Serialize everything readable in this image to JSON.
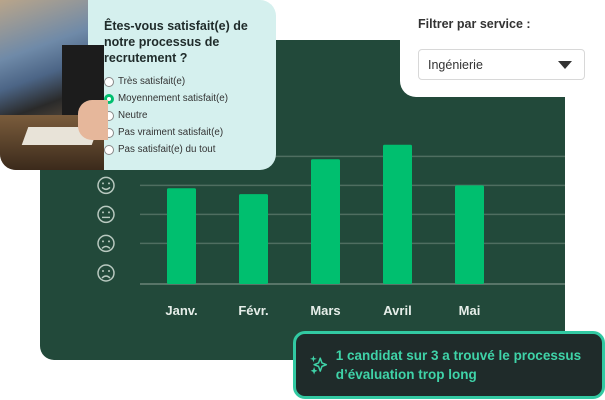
{
  "survey": {
    "question": "Êtes-vous satisfait(e) de notre processus de recrutement ?",
    "options": [
      {
        "label": "Très satisfait(e)",
        "selected": false
      },
      {
        "label": "Moyennement satisfait(e)",
        "selected": true
      },
      {
        "label": "Neutre",
        "selected": false
      },
      {
        "label": "Pas vraiment satisfait(e)",
        "selected": false
      },
      {
        "label": "Pas satisfait(e) du tout",
        "selected": false
      }
    ]
  },
  "filter": {
    "label": "Filtrer par service :",
    "selected": "Ingénierie"
  },
  "insight": {
    "icon": "sparkles-icon",
    "text": "1 candidat sur 3 a trouvé le processus d’évaluation trop long"
  },
  "colors": {
    "panel": "#22493a",
    "bar": "#00bf6f",
    "accent": "#3fd3a8"
  },
  "chart_data": {
    "type": "bar",
    "categories": [
      "Janv.",
      "Févr.",
      "Mars",
      "Avril",
      "Mai"
    ],
    "values": [
      3.9,
      3.7,
      4.9,
      5.4,
      4.0
    ],
    "y_icons": [
      {
        "level": 4,
        "icon": "happy-face-icon"
      },
      {
        "level": 3,
        "icon": "neutral-face-icon"
      },
      {
        "level": 2,
        "icon": "sad-face-icon"
      },
      {
        "level": 1,
        "icon": "angry-face-icon"
      }
    ],
    "ylim": [
      0.6,
      5.5
    ],
    "grid": true
  }
}
